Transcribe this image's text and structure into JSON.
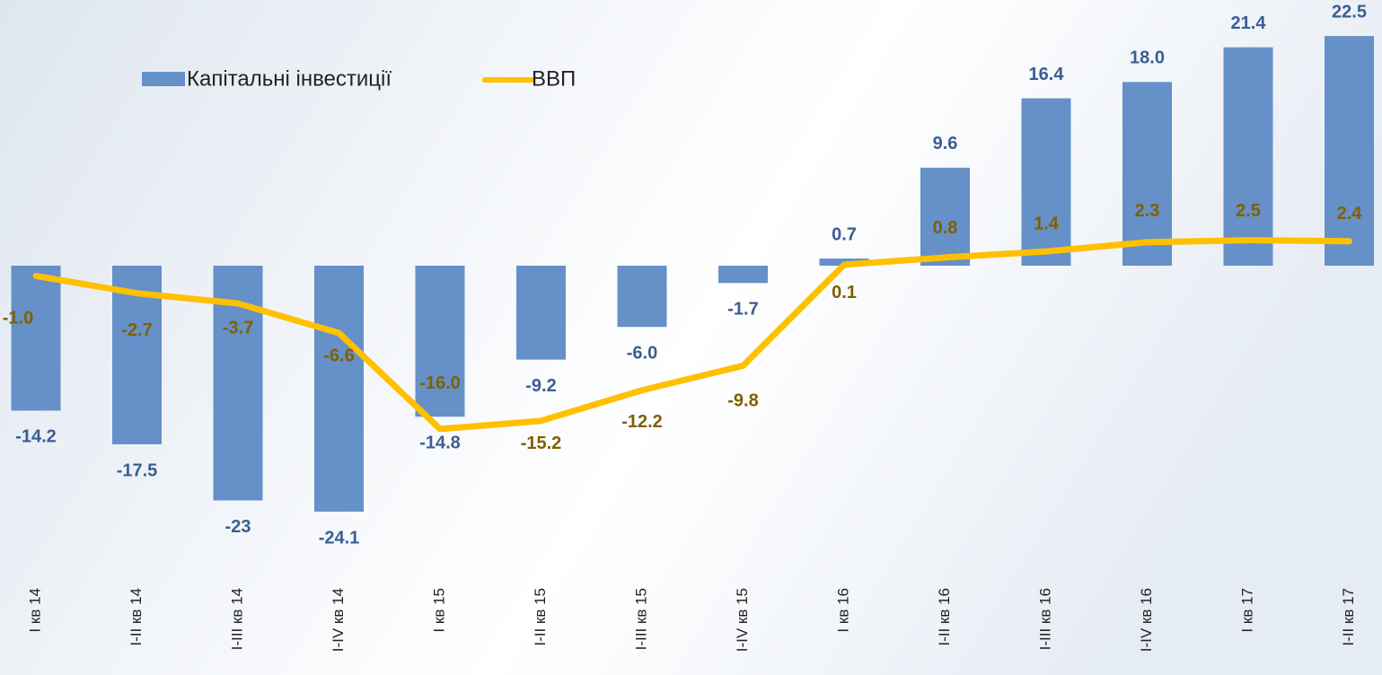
{
  "chart_data": {
    "type": "bar_line",
    "categories": [
      "I кв 14",
      "I-II кв 14",
      "I-III кв 14",
      "I-IV кв 14",
      "I  кв  15",
      "I-II кв 15",
      "I-III кв 15",
      "I-IV кв 15",
      "I кв 16",
      "I-II кв 16",
      "I-III кв 16",
      "I-IV кв 16",
      "I кв 17",
      "I-II кв 17"
    ],
    "series": [
      {
        "name": "Капітальні інвестиції",
        "type": "bar",
        "color": "#6590c8",
        "values": [
          -14.2,
          -17.5,
          -23,
          -24.1,
          -14.8,
          -9.2,
          -6.0,
          -1.7,
          0.7,
          9.6,
          16.4,
          18.0,
          21.4,
          22.5
        ],
        "value_labels": [
          "-14.2",
          "-17.5",
          "-23",
          "-24.1",
          "-14.8",
          "-9.2",
          "-6.0",
          "-1.7",
          "0.7",
          "9.6",
          "16.4",
          "18.0",
          "21.4",
          "22.5"
        ]
      },
      {
        "name": "ВВП",
        "type": "line",
        "color": "#ffc000",
        "values": [
          -1.0,
          -2.7,
          -3.7,
          -6.6,
          -16.0,
          -15.2,
          -12.2,
          -9.8,
          0.1,
          0.8,
          1.4,
          2.3,
          2.5,
          2.4
        ],
        "value_labels": [
          "-1.0",
          "-2.7",
          "-3.7",
          "-6.6",
          "-16.0",
          "-15.2",
          "-12.2",
          "-9.8",
          "0.1",
          "0.8",
          "1.4",
          "2.3",
          "2.5",
          "2.4"
        ]
      }
    ]
  }
}
